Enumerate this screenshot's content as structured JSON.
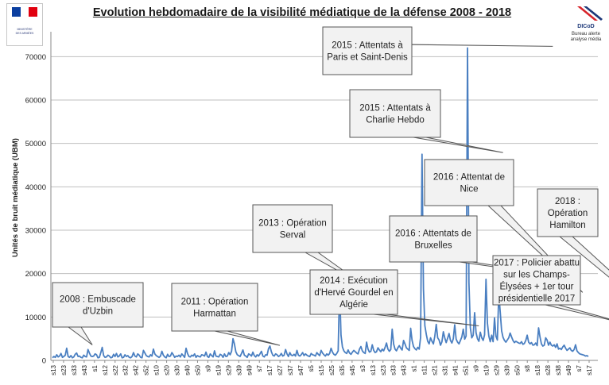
{
  "header": {
    "title": "Evolution hebdomadaire de la visibilité médiatique de la défense 2008 - 2018",
    "logo_left_text": [
      "MINISTÈRE",
      "DES ARMÉES"
    ],
    "logo_right_name": "DICoD",
    "logo_right_sub": [
      "Bureau alerte",
      "analyse média"
    ]
  },
  "colors": {
    "line": "#4a7fc1",
    "grid": "#bfbfbf",
    "callout_fill": "#f2f2f2",
    "callout_stroke": "#555555",
    "flag_blue": "#0b3fa0",
    "flag_red": "#e1000f"
  },
  "chart_data": {
    "type": "line",
    "title": "Evolution hebdomadaire de la visibilité médiatique de la défense 2008 - 2018",
    "ylabel": "Unités de bruit médiatique (UBM)",
    "xlabel": "",
    "ylim": [
      0,
      75000
    ],
    "yticks": [
      0,
      10000,
      20000,
      30000,
      40000,
      50000,
      60000,
      70000
    ],
    "ytick_labels": [
      "0",
      "10000",
      "20000",
      "30000",
      "40000",
      "50000",
      "60000",
      "70000"
    ],
    "grid": true,
    "legend": "none",
    "x_tick_labels": [
      "s13",
      "s23",
      "s33",
      "s43",
      "s1",
      "s12",
      "s22",
      "s32",
      "s42",
      "s52",
      "s10",
      "s20",
      "s30",
      "s40",
      "s50",
      "s9",
      "s19",
      "s29",
      "s39",
      "s49",
      "s7",
      "s17",
      "s27",
      "s37",
      "s47",
      "s5",
      "s15",
      "s25",
      "s35",
      "s45",
      "s3",
      "s13",
      "s23",
      "s33",
      "s43",
      "s1",
      "s11",
      "s21",
      "s31",
      "s41",
      "s51",
      "s9",
      "s19",
      "s29",
      "s39",
      "s50",
      "s8",
      "s18",
      "s28",
      "s38",
      "s49",
      "s7",
      "s17"
    ],
    "series": [
      {
        "values": [
          600,
          900,
          700,
          1300,
          800,
          1000,
          1600,
          700,
          900,
          1200,
          2800,
          900,
          700,
          1100,
          600,
          800,
          1400,
          1700,
          900,
          1000,
          700,
          600,
          1200,
          900,
          800,
          2500,
          1700,
          1000,
          900,
          1000,
          1500,
          1300,
          600,
          700,
          1800,
          3000,
          1100,
          700,
          800,
          1200,
          1000,
          600,
          700,
          1400,
          900,
          1600,
          800,
          1000,
          1500,
          600,
          700,
          1300,
          900,
          1100,
          700,
          600,
          900,
          1800,
          1000,
          800,
          1500,
          1200,
          700,
          600,
          2300,
          1700,
          1100,
          900,
          800,
          1300,
          1000,
          2600,
          1500,
          1100,
          900,
          700,
          1000,
          2100,
          1200,
          800,
          600,
          1400,
          900,
          1000,
          1800,
          1300,
          700,
          1000,
          900,
          1200,
          800,
          1500,
          1100,
          700,
          2800,
          1600,
          900,
          800,
          1200,
          1000,
          1500,
          700,
          1100,
          900,
          800,
          1300,
          1200,
          1000,
          1900,
          900,
          700,
          1500,
          1100,
          800,
          2200,
          1000,
          900,
          800,
          1400,
          1200,
          700,
          1500,
          900,
          1000,
          1800,
          1300,
          2100,
          5000,
          3800,
          2000,
          1300,
          1100,
          900,
          1600,
          2400,
          1200,
          1000,
          700,
          1500,
          1300,
          1000,
          1900,
          1100,
          800,
          1300,
          1000,
          1500,
          2100,
          1000,
          800,
          1300,
          1200,
          2700,
          3300,
          2000,
          1200,
          1000,
          1500,
          1300,
          900,
          1100,
          1600,
          1000,
          1200,
          2500,
          1500,
          900,
          1800,
          1200,
          1100,
          1400,
          1000,
          2300,
          1200,
          1000,
          1300,
          1800,
          1100,
          1500,
          1200,
          1000,
          900,
          1600,
          1300,
          1200,
          1000,
          1800,
          1400,
          1100,
          2300,
          1700,
          1300,
          1000,
          1500,
          1200,
          1600,
          2800,
          1900,
          1400,
          1200,
          1600,
          2200,
          17000,
          5800,
          3100,
          2200,
          1800,
          1600,
          2400,
          1700,
          1400,
          1900,
          2300,
          2000,
          1700,
          1500,
          2600,
          3200,
          2200,
          1800,
          1600,
          4200,
          2600,
          1900,
          2100,
          3600,
          2300,
          1800,
          2000,
          2900,
          2400,
          2000,
          2600,
          2200,
          3000,
          4000,
          2600,
          2100,
          2500,
          7200,
          3800,
          2600,
          2200,
          2900,
          3400,
          2800,
          2400,
          4600,
          3800,
          2900,
          2600,
          2300,
          7400,
          4600,
          3200,
          2700,
          2400,
          3000,
          2600,
          5300,
          47500,
          16500,
          8000,
          6000,
          4400,
          3800,
          5200,
          4400,
          3800,
          5600,
          8300,
          5200,
          4700,
          3500,
          4300,
          6600,
          5200,
          4100,
          5100,
          6200,
          4600,
          4000,
          5000,
          8200,
          4900,
          4200,
          3800,
          4600,
          5400,
          7200,
          4900,
          5600,
          72000,
          18000,
          7500,
          5200,
          5800,
          11000,
          6400,
          5000,
          4400,
          6500,
          5200,
          4600,
          5900,
          18700,
          8600,
          5600,
          4300,
          5800,
          4300,
          9800,
          5600,
          4700,
          15300,
          11200,
          6800,
          5300,
          4600,
          4200,
          4700,
          5200,
          6300,
          5400,
          4600,
          4100,
          4400,
          4200,
          4000,
          3900,
          4300,
          3700,
          3900,
          4600,
          5800,
          4200,
          3800,
          4100,
          3500,
          3600,
          4000,
          3400,
          7500,
          5400,
          3800,
          3300,
          3500,
          5200,
          4700,
          3500,
          4200,
          3500,
          3300,
          3600,
          3000,
          3800,
          2600,
          2800,
          2500,
          3100,
          3500,
          2800,
          2300,
          2600,
          2900,
          2300,
          2100,
          2500,
          3600,
          2200,
          1800,
          1500,
          1400,
          1300,
          1200,
          1000,
          1100,
          900
        ]
      }
    ],
    "annotations": [
      {
        "text": [
          "2008 : Embuscade",
          "d'Uzbin"
        ],
        "x_index": 28,
        "y": 3200
      },
      {
        "text": [
          "2011 : Opération",
          "Harmattan"
        ],
        "x_index": 160,
        "y": 3100
      },
      {
        "text": [
          "2013 : Opération",
          "Serval"
        ],
        "x_index": 219,
        "y": 17000
      },
      {
        "text": [
          "2014 : Exécution",
          "d'Hervé Gourdel en",
          "Algérie"
        ],
        "x_index": 300,
        "y": 7600
      },
      {
        "text": [
          "2015 : Attentats à",
          "Charlie Hebdo"
        ],
        "x_index": 317,
        "y": 47500
      },
      {
        "text": [
          "2015 : Attentats à",
          "Paris et Saint-Denis"
        ],
        "x_index": 352,
        "y": 72000
      },
      {
        "text": [
          "2016 : Attentats de",
          "Bruxelles"
        ],
        "x_index": 365,
        "y": 18700
      },
      {
        "text": [
          "2016 : Attentat de",
          "Nice"
        ],
        "x_index": 373,
        "y": 15300
      },
      {
        "text": [
          "2017 : Policier abattu",
          "sur les Champs-",
          "Élysées + 1er tour",
          "présidentielle 2017"
        ],
        "x_index": 405,
        "y": 8000
      },
      {
        "text": [
          "2018 :",
          "Opération",
          "Hamilton"
        ],
        "x_index": 448,
        "y": 3600
      }
    ]
  }
}
